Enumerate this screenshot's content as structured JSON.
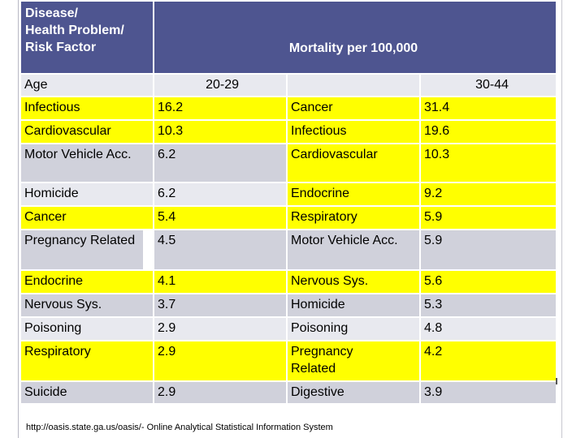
{
  "header": {
    "col_label": "Disease/\nHealth Problem/\nRisk Factor",
    "mortality_label": "Mortality per 100,000",
    "age_label": "Age",
    "age_group_1": "20-29",
    "age_group_2": "30-44"
  },
  "rows": [
    {
      "d1": "Infectious",
      "v1": "16.2",
      "d2": "Cancer",
      "v2": "31.4"
    },
    {
      "d1": "Cardiovascular",
      "v1": "10.3",
      "d2": "Infectious",
      "v2": "19.6"
    },
    {
      "d1": "Motor Vehicle Acc.",
      "v1": "6.2",
      "d2": "Cardiovascular",
      "v2": "10.3"
    },
    {
      "d1": "Homicide",
      "v1": "6.2",
      "d2": "Endocrine",
      "v2": "9.2"
    },
    {
      "d1": "Cancer",
      "v1": "5.4",
      "d2": "Respiratory",
      "v2": "5.9"
    },
    {
      "d1": "Pregnancy Related",
      "v1": "4.5",
      "d2": "Motor Vehicle Acc.",
      "v2": "5.9"
    },
    {
      "d1": "Endocrine",
      "v1": "4.1",
      "d2": "Nervous Sys.",
      "v2": "5.6"
    },
    {
      "d1": "Nervous Sys.",
      "v1": "3.7",
      "d2": "Homicide",
      "v2": "5.3"
    },
    {
      "d1": "Poisoning",
      "v1": "2.9",
      "d2": "Poisoning",
      "v2": "4.8"
    },
    {
      "d1": "Respiratory",
      "v1": "2.9",
      "d2": "Pregnancy Related",
      "v2": "4.2"
    },
    {
      "d1": "Suicide",
      "v1": "2.9",
      "d2": "Digestive",
      "v2": "3.9"
    }
  ],
  "source": "http://oasis.state.ga.us/oasis/- Online Analytical Statistical Information System",
  "colors": {
    "header_bg": "#4e5590",
    "highlight": "#ffff00",
    "grey": "#d0d1db"
  }
}
